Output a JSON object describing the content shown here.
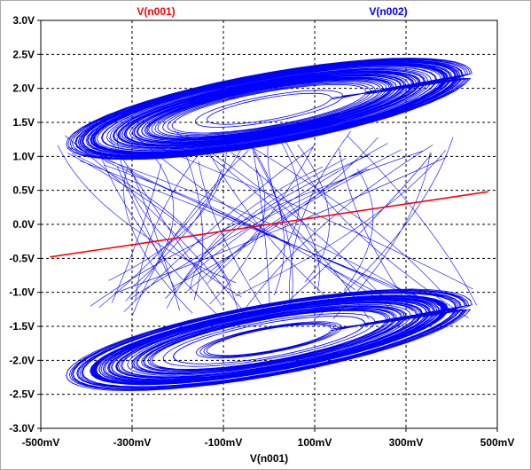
{
  "chart_data": {
    "type": "line",
    "title": "",
    "xlabel": "V(n001)",
    "ylabel": "",
    "xlim": [
      -500,
      500
    ],
    "ylim": [
      -3.0,
      3.0
    ],
    "grid": true,
    "legend_placement": "top",
    "x_ticks": [
      "-500mV",
      "-300mV",
      "-100mV",
      "100mV",
      "300mV",
      "500mV"
    ],
    "y_ticks": [
      "3.0V",
      "2.5V",
      "2.0V",
      "1.5V",
      "1.0V",
      "0.5V",
      "0.0V",
      "-0.5V",
      "-1.0V",
      "-1.5V",
      "-2.0V",
      "-2.5V",
      "-3.0V"
    ],
    "series": [
      {
        "name": "V(n001)",
        "color": "#ff0000",
        "x": [
          -480,
          480
        ],
        "y": [
          -0.48,
          0.48
        ]
      },
      {
        "name": "V(n002)",
        "color": "#0000ff",
        "description_free": true,
        "upper_lobe": {
          "center_x": 0,
          "center_y": 1.7,
          "x_extent": [
            -470,
            420
          ],
          "y_extent": [
            0.8,
            2.75
          ]
        },
        "lower_lobe": {
          "center_x": 0,
          "center_y": -1.7,
          "x_extent": [
            -420,
            470
          ],
          "y_extent": [
            -2.75,
            -0.8
          ]
        }
      }
    ]
  }
}
